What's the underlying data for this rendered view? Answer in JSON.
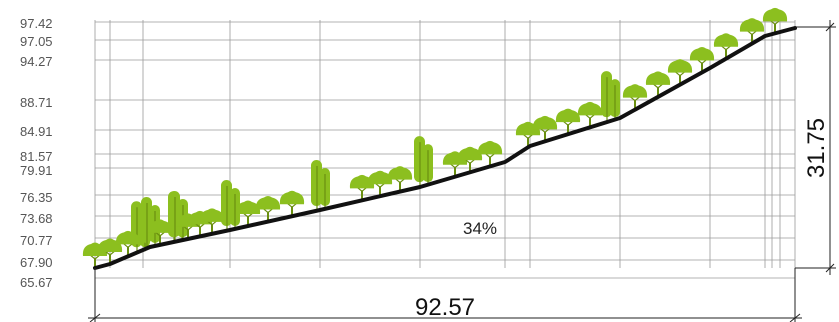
{
  "profile": {
    "elevation_labels": [
      "97.42",
      "97.05",
      "94.27",
      "88.71",
      "84.91",
      "81.57",
      "79.91",
      "76.35",
      "73.68",
      "70.77",
      "67.90",
      "65.67"
    ],
    "slope_label": "34%",
    "horizontal_dimension": "92.57",
    "vertical_dimension": "31.75",
    "colors": {
      "ground_line": "#111111",
      "grid": "#9a9a9a",
      "tree_canopy": "#8cbf1f",
      "tree_trunk": "#6a8f10",
      "text": "#555555"
    },
    "trees": {
      "rounded": 24,
      "columnar": 8
    }
  }
}
